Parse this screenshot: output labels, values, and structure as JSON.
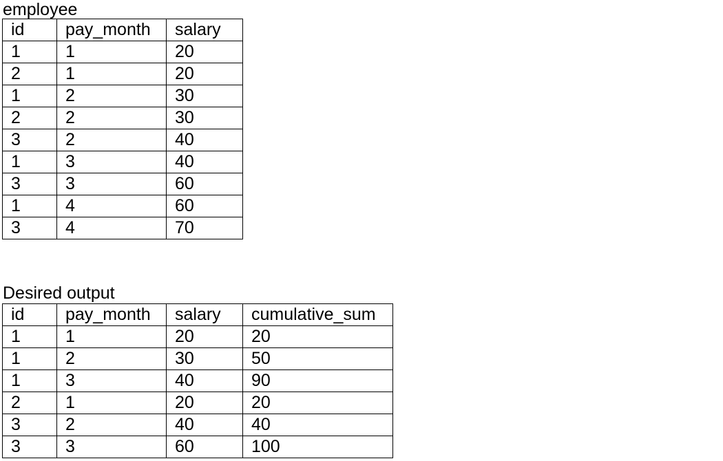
{
  "employee_table": {
    "caption": "employee",
    "columns": [
      "id",
      "pay_month",
      "salary"
    ],
    "rows": [
      [
        "1",
        "1",
        "20"
      ],
      [
        "2",
        "1",
        "20"
      ],
      [
        "1",
        "2",
        "30"
      ],
      [
        "2",
        "2",
        "30"
      ],
      [
        "3",
        "2",
        "40"
      ],
      [
        "1",
        "3",
        "40"
      ],
      [
        "3",
        "3",
        "60"
      ],
      [
        "1",
        "4",
        "60"
      ],
      [
        "3",
        "4",
        "70"
      ]
    ]
  },
  "output_table": {
    "caption": "Desired output",
    "columns": [
      "id",
      "pay_month",
      "salary",
      "cumulative_sum"
    ],
    "rows": [
      [
        "1",
        "1",
        "20",
        "20"
      ],
      [
        "1",
        "2",
        "30",
        "50"
      ],
      [
        "1",
        "3",
        "40",
        "90"
      ],
      [
        "2",
        "1",
        "20",
        "20"
      ],
      [
        "3",
        "2",
        "40",
        "40"
      ],
      [
        "3",
        "3",
        "60",
        "100"
      ]
    ]
  }
}
